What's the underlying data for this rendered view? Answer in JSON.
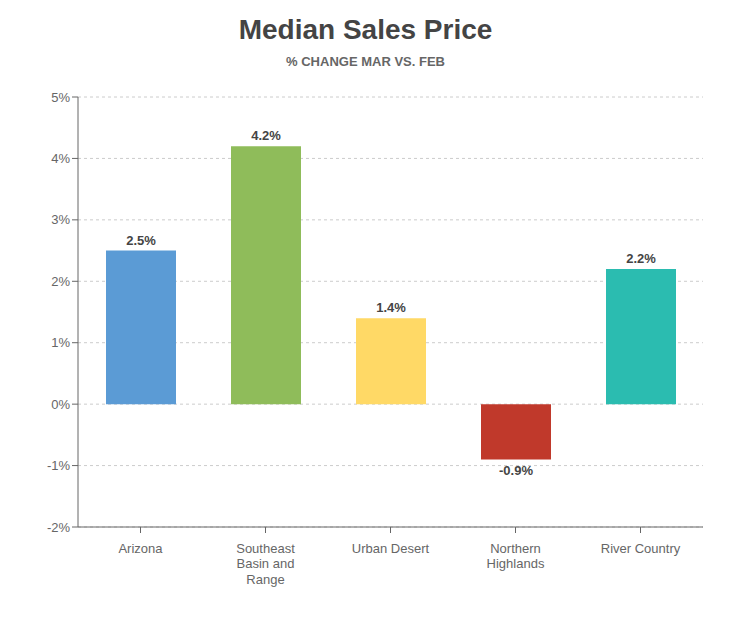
{
  "chart_data": {
    "type": "bar",
    "title": "Median Sales Price",
    "subtitle": "% CHANGE MAR VS. FEB",
    "categories": [
      "Arizona",
      "Southeast\nBasin and\nRange",
      "Urban Desert",
      "Northern\nHighlands",
      "River Country"
    ],
    "values": [
      2.5,
      4.2,
      1.4,
      -0.9,
      2.2
    ],
    "value_labels": [
      "2.5%",
      "4.2%",
      "1.4%",
      "-0.9%",
      "2.2%"
    ],
    "colors": [
      "#5B9BD5",
      "#8FBC5A",
      "#FFD966",
      "#C0392B",
      "#2BBCB0"
    ],
    "ylim": [
      -2.0,
      5.0
    ],
    "yticks": [
      {
        "value": -2,
        "label": "-2%"
      },
      {
        "value": -1,
        "label": "-1%"
      },
      {
        "value": 0,
        "label": "0%"
      },
      {
        "value": 1,
        "label": "1%"
      },
      {
        "value": 2,
        "label": "2%"
      },
      {
        "value": 3,
        "label": "3%"
      },
      {
        "value": 4,
        "label": "4%"
      },
      {
        "value": 5,
        "label": "5%"
      }
    ],
    "grid": true,
    "data_labels": true
  }
}
